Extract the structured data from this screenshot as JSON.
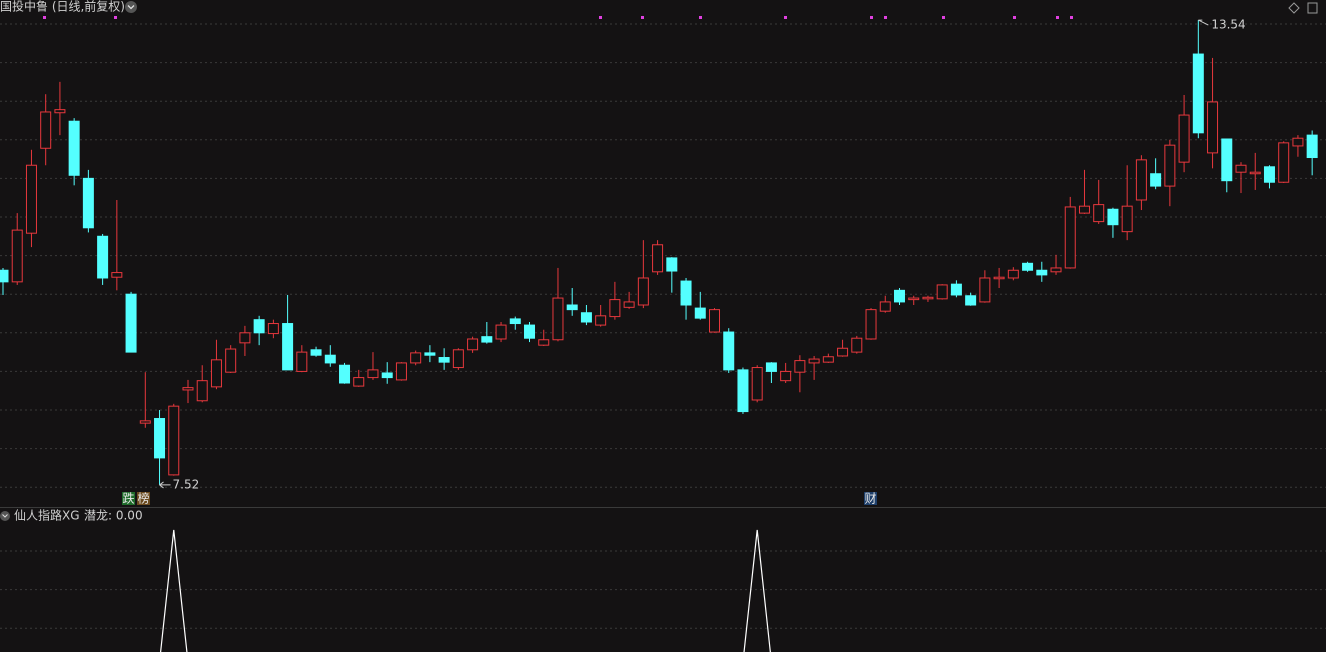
{
  "chart_data": [
    {
      "type": "candlestick",
      "title": "国投中鲁 (日线,前复权)",
      "up_color": "#e8383d",
      "down_color": "#54ffff",
      "ylim": [
        7.26,
        13.8
      ],
      "high_label": "13.54",
      "low_label": "7.52",
      "event_labels": [
        "跌",
        "榜",
        "财"
      ],
      "open": [
        10.3,
        10.15,
        10.78,
        11.88,
        12.34,
        12.23,
        11.49,
        10.74,
        10.21,
        9.99,
        8.32,
        8.38,
        7.65,
        8.75,
        8.61,
        8.79,
        8.98,
        9.36,
        9.66,
        9.48,
        9.61,
        8.99,
        9.27,
        9.2,
        9.07,
        8.8,
        8.91,
        8.97,
        8.88,
        9.1,
        9.23,
        9.17,
        9.04,
        9.27,
        9.44,
        9.41,
        9.67,
        9.59,
        9.33,
        9.4,
        9.85,
        9.75,
        9.59,
        9.7,
        9.82,
        9.85,
        10.28,
        10.46,
        10.16,
        9.81,
        9.5,
        9.5,
        9.01,
        8.62,
        9.1,
        8.87,
        8.98,
        9.1,
        9.11,
        9.19,
        9.24,
        9.41,
        9.77,
        10.04,
        9.92,
        9.93,
        9.93,
        10.12,
        9.97,
        9.89,
        10.19,
        10.2,
        10.39,
        10.3,
        10.28,
        10.33,
        11.04,
        10.93,
        11.09,
        10.8,
        11.21,
        11.55,
        11.39,
        11.7,
        13.1,
        11.82,
        12.0,
        11.57,
        11.55,
        11.64,
        11.44,
        11.91,
        12.05
      ],
      "high": [
        10.33,
        11.04,
        11.86,
        12.58,
        12.74,
        12.27,
        11.6,
        10.77,
        11.21,
        10.02,
        8.98,
        8.49,
        8.57,
        8.88,
        9.07,
        9.4,
        9.33,
        9.58,
        9.71,
        9.66,
        9.98,
        9.33,
        9.31,
        9.33,
        9.1,
        9.01,
        9.24,
        9.11,
        9.11,
        9.26,
        9.33,
        9.29,
        9.29,
        9.44,
        9.63,
        9.63,
        9.7,
        9.63,
        9.53,
        10.33,
        10.07,
        9.85,
        9.85,
        10.15,
        10.02,
        10.69,
        10.69,
        10.47,
        10.2,
        10.02,
        9.81,
        9.55,
        9.04,
        9.07,
        9.11,
        9.1,
        9.2,
        9.19,
        9.22,
        9.4,
        9.45,
        9.81,
        9.97,
        10.07,
        9.97,
        9.97,
        10.12,
        10.17,
        10.01,
        10.3,
        10.33,
        10.34,
        10.41,
        10.41,
        10.5,
        11.25,
        11.6,
        11.47,
        11.11,
        11.66,
        11.79,
        11.75,
        11.99,
        12.57,
        13.54,
        13.05,
        12.0,
        11.7,
        11.82,
        11.66,
        11.97,
        12.05,
        12.11
      ],
      "low": [
        9.98,
        10.11,
        10.6,
        11.66,
        12.05,
        11.4,
        10.79,
        10.11,
        10.04,
        9.24,
        8.26,
        7.52,
        7.64,
        8.58,
        8.59,
        8.76,
        8.97,
        9.19,
        9.33,
        9.42,
        9.01,
        8.98,
        9.18,
        9.05,
        8.83,
        8.79,
        8.88,
        8.83,
        8.87,
        9.07,
        9.11,
        9.01,
        9.01,
        9.23,
        9.35,
        9.37,
        9.53,
        9.37,
        9.32,
        9.38,
        9.71,
        9.59,
        9.57,
        9.66,
        9.8,
        9.81,
        10.24,
        10.01,
        9.66,
        9.66,
        9.49,
        8.97,
        8.44,
        8.59,
        8.84,
        8.84,
        8.72,
        8.88,
        9.1,
        9.18,
        9.22,
        9.4,
        9.75,
        9.85,
        9.85,
        9.89,
        9.92,
        9.95,
        9.84,
        9.88,
        10.07,
        10.17,
        10.28,
        10.15,
        10.24,
        10.32,
        11.03,
        10.9,
        10.72,
        10.69,
        11.08,
        11.35,
        11.13,
        11.57,
        12.01,
        11.62,
        11.31,
        11.3,
        11.34,
        11.36,
        11.43,
        11.77,
        11.53
      ],
      "close": [
        10.15,
        10.82,
        11.66,
        12.35,
        12.38,
        11.53,
        10.85,
        10.2,
        10.27,
        9.24,
        8.35,
        7.87,
        8.54,
        8.78,
        8.87,
        9.14,
        9.28,
        9.49,
        9.49,
        9.61,
        9.01,
        9.24,
        9.2,
        9.1,
        8.84,
        8.91,
        9.01,
        8.91,
        9.1,
        9.23,
        9.2,
        9.11,
        9.27,
        9.41,
        9.37,
        9.59,
        9.61,
        9.42,
        9.4,
        9.94,
        9.79,
        9.63,
        9.71,
        9.92,
        9.89,
        10.2,
        10.63,
        10.29,
        9.85,
        9.68,
        9.79,
        9.01,
        8.47,
        9.04,
        8.99,
        8.99,
        9.13,
        9.15,
        9.18,
        9.29,
        9.42,
        9.79,
        9.89,
        9.89,
        9.94,
        9.95,
        10.11,
        9.98,
        9.85,
        10.2,
        10.21,
        10.3,
        10.3,
        10.24,
        10.33,
        11.12,
        11.13,
        11.15,
        10.89,
        11.13,
        11.73,
        11.39,
        11.92,
        12.31,
        12.08,
        12.48,
        11.46,
        11.66,
        11.57,
        11.44,
        11.95,
        12.01,
        11.76
      ]
    },
    {
      "type": "line",
      "title": "仙人指路XG",
      "ylim": [
        0,
        1
      ],
      "series": [
        {
          "name": "潜龙: 0.00",
          "color": "#ffffff",
          "values": [
            0,
            0,
            0,
            0,
            0,
            0,
            0,
            0,
            0,
            0,
            0,
            0,
            1,
            0,
            0,
            0,
            0,
            0,
            0,
            0,
            0,
            0,
            0,
            0,
            0,
            0,
            0,
            0,
            0,
            0,
            0,
            0,
            0,
            0,
            0,
            0,
            0,
            0,
            0,
            0,
            0,
            0,
            0,
            0,
            0,
            0,
            0,
            0,
            0,
            0,
            0,
            0,
            0,
            1,
            0,
            0,
            0,
            0,
            0,
            0,
            0,
            0,
            0,
            0,
            0,
            0,
            0,
            0,
            0,
            0,
            0,
            0,
            0,
            0,
            0,
            0,
            0,
            0,
            0,
            0,
            0,
            0,
            0,
            0,
            0,
            0,
            0,
            0,
            0,
            0,
            0,
            0,
            0
          ]
        }
      ]
    }
  ]
}
